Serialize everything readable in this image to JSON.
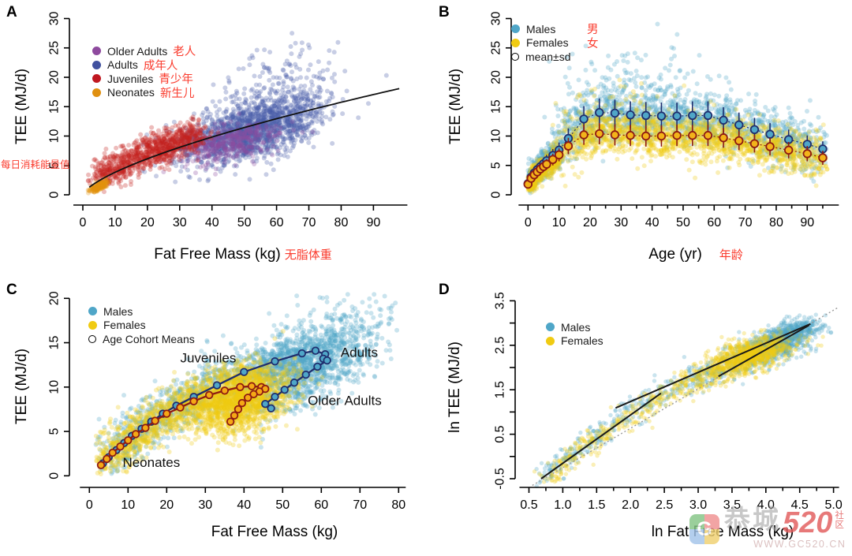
{
  "chart_data": [
    {
      "id": "A",
      "type": "scatter",
      "xlabel": "Fat Free Mass (kg)",
      "xlabel_zh": "无脂体重",
      "ylabel": "TEE (MJ/d)",
      "note_zh": "每日消耗能量值",
      "xlim": [
        0,
        100
      ],
      "ylim": [
        0,
        30
      ],
      "x_ticks": [
        0,
        10,
        20,
        30,
        40,
        50,
        60,
        70,
        80,
        90
      ],
      "y_ticks": [
        0,
        5,
        10,
        15,
        20,
        25,
        30
      ],
      "legend": [
        {
          "label": "Older Adults",
          "zh": "老人",
          "color": "#8e4a9e"
        },
        {
          "label": "Adults",
          "zh": "成年人",
          "color": "#41519f"
        },
        {
          "label": "Juveniles",
          "zh": "青少年",
          "color": "#c01820"
        },
        {
          "label": "Neonates",
          "zh": "新生儿",
          "color": "#e09010"
        }
      ],
      "trend": {
        "type": "power",
        "a": 0.8,
        "b": 0.68,
        "range": [
          2,
          98
        ],
        "color": "#111111"
      },
      "scatter_spec": [
        {
          "type": "blob",
          "n": 1700,
          "cx": 52,
          "cy": 11.0,
          "sx": 11,
          "sy": 2.9,
          "rho": 0.55,
          "color": "#4a5ca8"
        },
        {
          "type": "blob",
          "n": 120,
          "cx": 63,
          "cy": 20,
          "sx": 9,
          "sy": 3.0,
          "rho": 0.3,
          "color": "#4a5ca8"
        },
        {
          "type": "blob",
          "n": 380,
          "cx": 45,
          "cy": 8.8,
          "sx": 8,
          "sy": 1.8,
          "rho": 0.5,
          "color": "#8c4ca0"
        },
        {
          "type": "band",
          "n": 950,
          "path": [
            [
              5,
              2.9
            ],
            [
              12,
              5.0
            ],
            [
              20,
              7.1
            ],
            [
              28,
              8.8
            ],
            [
              36,
              10.4
            ]
          ],
          "jx": 2.6,
          "jy": 1.35,
          "color": "#c2211f"
        },
        {
          "type": "blob",
          "n": 170,
          "cx": 4.8,
          "cy": 1.3,
          "sx": 1.4,
          "sy": 0.55,
          "rho": 0.75,
          "color": "#e2930e"
        }
      ]
    },
    {
      "id": "B",
      "type": "scatter",
      "xlabel": "Age (yr)",
      "xlabel_zh": "年龄",
      "ylabel": "TEE (MJ/d)",
      "xlim": [
        0,
        96
      ],
      "ylim": [
        0,
        30
      ],
      "x_ticks": [
        0,
        10,
        20,
        30,
        40,
        50,
        60,
        70,
        80,
        90
      ],
      "x_minor": [
        5,
        15,
        25,
        35,
        45,
        55,
        65,
        75,
        85,
        95
      ],
      "y_ticks": [
        0,
        5,
        10,
        15,
        20,
        25,
        30
      ],
      "legend": [
        {
          "label": "Males",
          "zh": "男",
          "color": "#4fa6c8"
        },
        {
          "label": "Females",
          "zh": "女",
          "color": "#f0cb12"
        },
        {
          "label": "mean±sd",
          "marker": "open"
        }
      ],
      "means": {
        "ages": [
          0,
          1,
          2,
          3,
          4,
          5,
          6,
          8,
          10,
          13,
          18,
          23,
          28,
          33,
          38,
          43,
          48,
          53,
          58,
          63,
          68,
          73,
          78,
          84,
          90,
          95
        ],
        "male": {
          "mean": [
            1.9,
            3.0,
            3.7,
            4.3,
            4.8,
            5.3,
            5.8,
            6.7,
            7.6,
            9.6,
            12.9,
            14.0,
            13.9,
            13.6,
            13.5,
            13.4,
            13.4,
            13.5,
            13.5,
            12.7,
            11.9,
            11.1,
            10.3,
            9.4,
            8.6,
            7.8
          ],
          "sd": [
            0.6,
            0.7,
            0.8,
            0.8,
            0.9,
            0.9,
            1.0,
            1.1,
            1.3,
            1.7,
            2.2,
            2.4,
            2.3,
            2.3,
            2.3,
            2.3,
            2.3,
            2.4,
            2.4,
            2.2,
            2.1,
            2.0,
            1.9,
            1.7,
            1.5,
            1.3
          ],
          "fill": "#4fa6c8",
          "stroke": "#1f2e6e"
        },
        "female": {
          "mean": [
            1.8,
            2.8,
            3.4,
            3.9,
            4.4,
            4.8,
            5.2,
            6.0,
            6.8,
            8.3,
            10.2,
            10.4,
            10.2,
            10.1,
            10.0,
            10.0,
            10.1,
            10.1,
            10.1,
            9.7,
            9.2,
            8.7,
            8.2,
            7.6,
            7.0,
            6.3
          ],
          "sd": [
            0.5,
            0.6,
            0.7,
            0.7,
            0.8,
            0.8,
            0.9,
            1.0,
            1.1,
            1.4,
            1.7,
            1.8,
            1.8,
            1.8,
            1.8,
            1.8,
            1.8,
            1.8,
            1.8,
            1.7,
            1.6,
            1.5,
            1.5,
            1.4,
            1.3,
            1.2
          ],
          "fill": "#f3b31a",
          "stroke": "#8e1a12"
        }
      },
      "scatter_spec": [
        {
          "type": "band",
          "n": 550,
          "path": [
            [
              0.3,
              1.8
            ],
            [
              3,
              4.3
            ],
            [
              6,
              5.8
            ],
            [
              10,
              7.5
            ]
          ],
          "jx": 0.9,
          "jy": 1.1,
          "color": "#4fa6c8"
        },
        {
          "type": "band",
          "n": 1500,
          "path": [
            [
              12,
              9.2
            ],
            [
              18,
              12.9
            ],
            [
              25,
              13.9
            ],
            [
              45,
              13.4
            ],
            [
              60,
              13.0
            ],
            [
              75,
              10.6
            ],
            [
              95,
              7.8
            ]
          ],
          "jx": 2.5,
          "jy": 2.4,
          "color": "#4fa6c8"
        },
        {
          "type": "blob",
          "n": 110,
          "cx": 33,
          "cy": 19,
          "sx": 13,
          "sy": 3,
          "rho": 0,
          "color": "#4fa6c8"
        },
        {
          "type": "band",
          "n": 550,
          "path": [
            [
              0.3,
              1.7
            ],
            [
              3,
              3.9
            ],
            [
              6,
              5.2
            ],
            [
              10,
              6.8
            ]
          ],
          "jx": 0.9,
          "jy": 1.0,
          "color": "#f0cb12"
        },
        {
          "type": "band",
          "n": 1500,
          "path": [
            [
              12,
              8.4
            ],
            [
              18,
              10.2
            ],
            [
              25,
              10.4
            ],
            [
              45,
              10.0
            ],
            [
              60,
              9.8
            ],
            [
              75,
              8.4
            ],
            [
              95,
              6.3
            ]
          ],
          "jx": 2.5,
          "jy": 1.9,
          "color": "#f0cb12"
        },
        {
          "type": "blob",
          "n": 70,
          "cx": 30,
          "cy": 14.5,
          "sx": 10,
          "sy": 2,
          "rho": 0,
          "color": "#f0cb12"
        }
      ]
    },
    {
      "id": "C",
      "type": "scatter",
      "xlabel": "Fat Free Mass (kg)",
      "ylabel": "TEE (MJ/d)",
      "xlim": [
        0,
        80
      ],
      "ylim": [
        0,
        20
      ],
      "x_ticks": [
        0,
        10,
        20,
        30,
        40,
        50,
        60,
        70,
        80
      ],
      "y_ticks": [
        0,
        5,
        10,
        15,
        20
      ],
      "legend": [
        {
          "label": "Males",
          "color": "#4fa6c8"
        },
        {
          "label": "Females",
          "color": "#f0cb12"
        },
        {
          "label": "Age Cohort Means",
          "marker": "open"
        }
      ],
      "annotations": [
        {
          "text": "Juveniles",
          "x": 23.5,
          "y": 13.2
        },
        {
          "text": "Adults",
          "x": 65.0,
          "y": 13.8
        },
        {
          "text": "Older Adults",
          "x": 56.5,
          "y": 8.4
        },
        {
          "text": "Neonates",
          "x": 8.6,
          "y": 1.4
        }
      ],
      "trajectories": {
        "male": {
          "line": "#1f2e6e",
          "fill": "#4fa6c8",
          "points": [
            [
              3.5,
              1.4
            ],
            [
              5,
              2.1
            ],
            [
              7,
              2.9
            ],
            [
              9,
              3.7
            ],
            [
              11,
              4.5
            ],
            [
              13.5,
              5.3
            ],
            [
              16,
              6.1
            ],
            [
              19,
              7.0
            ],
            [
              22.5,
              7.9
            ],
            [
              27,
              8.9
            ],
            [
              33,
              10.2
            ],
            [
              40,
              11.7
            ],
            [
              48,
              12.9
            ],
            [
              55,
              13.8
            ],
            [
              58.5,
              14.1
            ],
            [
              61,
              13.7
            ],
            [
              60.5,
              13.2
            ],
            [
              61.5,
              13.0
            ],
            [
              59,
              12.3
            ],
            [
              56,
              11.4
            ],
            [
              53,
              10.5
            ],
            [
              50.5,
              9.7
            ],
            [
              48,
              8.9
            ],
            [
              45.5,
              8.1
            ],
            [
              47,
              7.6
            ]
          ]
        },
        "female": {
          "line": "#8e1a12",
          "fill": "#f5a816",
          "points": [
            [
              3,
              1.2
            ],
            [
              4.5,
              1.9
            ],
            [
              6,
              2.6
            ],
            [
              8,
              3.3
            ],
            [
              10,
              4.0
            ],
            [
              12,
              4.7
            ],
            [
              14.5,
              5.4
            ],
            [
              17,
              6.2
            ],
            [
              20,
              7.0
            ],
            [
              23.5,
              7.7
            ],
            [
              27,
              8.4
            ],
            [
              31,
              9.1
            ],
            [
              35,
              9.6
            ],
            [
              39,
              10.0
            ],
            [
              42,
              10.1
            ],
            [
              44.5,
              10.0
            ],
            [
              45.5,
              9.8
            ],
            [
              44,
              9.5
            ],
            [
              42.5,
              9.2
            ],
            [
              41,
              8.8
            ],
            [
              39.5,
              8.2
            ],
            [
              38.5,
              7.5
            ],
            [
              37.5,
              6.8
            ],
            [
              36.5,
              6.1
            ]
          ]
        }
      },
      "scatter_spec": [
        {
          "type": "band",
          "n": 1100,
          "path": [
            [
              3.5,
              1.4
            ],
            [
              9,
              3.7
            ],
            [
              16,
              6.1
            ],
            [
              27,
              8.9
            ],
            [
              40,
              11.7
            ],
            [
              55,
              13.8
            ]
          ],
          "jx": 3.5,
          "jy": 1.3,
          "color": "#4fa6c8"
        },
        {
          "type": "blob",
          "n": 900,
          "cx": 59,
          "cy": 13.2,
          "sx": 8.5,
          "sy": 2.2,
          "rho": 0.5,
          "color": "#4fa6c8"
        },
        {
          "type": "blob",
          "n": 90,
          "cx": 64,
          "cy": 17.5,
          "sx": 7,
          "sy": 1.4,
          "rho": 0.3,
          "color": "#4fa6c8"
        },
        {
          "type": "blob",
          "n": 250,
          "cx": 50,
          "cy": 9.5,
          "sx": 7,
          "sy": 1.8,
          "rho": 0.4,
          "color": "#4fa6c8"
        },
        {
          "type": "band",
          "n": 1100,
          "path": [
            [
              3,
              1.2
            ],
            [
              8,
              3.3
            ],
            [
              14.5,
              5.4
            ],
            [
              23.5,
              7.7
            ],
            [
              33,
              9.4
            ],
            [
              41,
              10.1
            ]
          ],
          "jx": 3.2,
          "jy": 1.2,
          "color": "#f0cb12"
        },
        {
          "type": "blob",
          "n": 1100,
          "cx": 40,
          "cy": 8.9,
          "sx": 6.5,
          "sy": 1.9,
          "rho": 0.4,
          "color": "#f0cb12"
        },
        {
          "type": "blob",
          "n": 250,
          "cx": 38,
          "cy": 7,
          "sx": 6,
          "sy": 1.5,
          "rho": 0.3,
          "color": "#f0cb12"
        }
      ]
    },
    {
      "id": "D",
      "type": "scatter",
      "xlabel": "ln Fat Free Mass (kg)",
      "ylabel": "ln TEE (MJ/d)",
      "xlim": [
        0.5,
        5.0
      ],
      "ylim": [
        -0.5,
        3.5
      ],
      "x_ticks": [
        0.5,
        1.0,
        1.5,
        2.0,
        2.5,
        3.0,
        3.5,
        4.0,
        4.5,
        5.0
      ],
      "x_minor": [
        0.75,
        1.25,
        1.75,
        2.25,
        2.75,
        3.25,
        3.75,
        4.25,
        4.75
      ],
      "y_ticks": [
        -0.5,
        0.5,
        1.5,
        2.5,
        3.5
      ],
      "y_all": [
        -0.5,
        0,
        0.5,
        1,
        1.5,
        2,
        2.5,
        3,
        3.5
      ],
      "x_decimals": 1,
      "y_decimals": 1,
      "legend": [
        {
          "label": "Males",
          "color": "#4fa6c8"
        },
        {
          "label": "Females",
          "color": "#f0cb12"
        }
      ],
      "lines": {
        "dotted": [
          [
            0.55,
            -0.65
          ],
          [
            5.08,
            3.36
          ]
        ],
        "solid": [
          [
            [
              0.68,
              -0.5
            ],
            [
              2.45,
              1.42
            ]
          ],
          [
            [
              1.78,
              1.09
            ],
            [
              4.66,
              2.98
            ]
          ],
          [
            [
              3.3,
              1.8
            ],
            [
              4.64,
              2.95
            ]
          ]
        ]
      },
      "scatter_spec": [
        {
          "type": "band",
          "n": 320,
          "path": [
            [
              0.68,
              -0.45
            ],
            [
              1.5,
              0.5
            ],
            [
              2.3,
              1.3
            ],
            [
              3.1,
              1.82
            ]
          ],
          "jx": 0.1,
          "jy": 0.13,
          "color": "#4fa6c8"
        },
        {
          "type": "blob",
          "n": 150,
          "cx": 3.3,
          "cy": 1.95,
          "sx": 0.3,
          "sy": 0.18,
          "rho": 0.4,
          "color": "#4fa6c8"
        },
        {
          "type": "blob",
          "n": 750,
          "cx": 4.15,
          "cy": 2.55,
          "sx": 0.3,
          "sy": 0.24,
          "rho": 0.6,
          "color": "#4fa6c8"
        },
        {
          "type": "band",
          "n": 320,
          "path": [
            [
              0.72,
              -0.5
            ],
            [
              1.55,
              0.45
            ],
            [
              2.35,
              1.25
            ],
            [
              3.1,
              1.75
            ]
          ],
          "jx": 0.1,
          "jy": 0.13,
          "color": "#f0cb12"
        },
        {
          "type": "blob",
          "n": 150,
          "cx": 3.3,
          "cy": 1.88,
          "sx": 0.3,
          "sy": 0.18,
          "rho": 0.4,
          "color": "#f0cb12"
        },
        {
          "type": "blob",
          "n": 800,
          "cx": 3.78,
          "cy": 2.3,
          "sx": 0.3,
          "sy": 0.2,
          "rho": 0.55,
          "color": "#f0cb12"
        },
        {
          "type": "blob",
          "n": 150,
          "cx": 4.5,
          "cy": 2.85,
          "sx": 0.15,
          "sy": 0.12,
          "rho": 0.5,
          "color": "#4fa6c8"
        }
      ]
    }
  ],
  "watermark": {
    "logo_letter": "G",
    "brand": "恭城",
    "number": "520",
    "community": "社\n区",
    "url": "WWW.GC520.CN"
  }
}
